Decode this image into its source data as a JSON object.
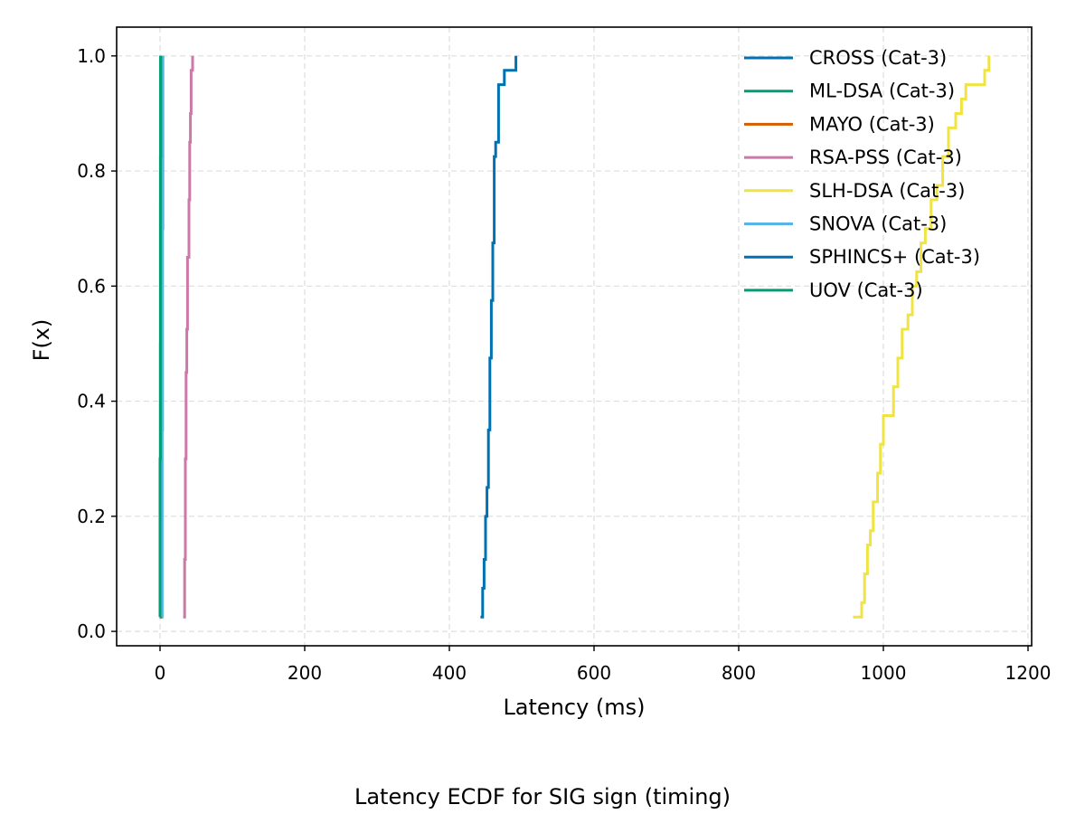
{
  "chart_data": {
    "type": "line",
    "title": "",
    "caption": "Latency ECDF for SIG sign (timing)",
    "xlabel": "Latency (ms)",
    "ylabel": "F(x)",
    "xlim": [
      -60,
      1205
    ],
    "ylim": [
      -0.025,
      1.05
    ],
    "xticks": [
      0,
      200,
      400,
      600,
      800,
      1000,
      1200
    ],
    "yticks": [
      0.0,
      0.2,
      0.4,
      0.6,
      0.8,
      1.0
    ],
    "xtick_labels": [
      "0",
      "200",
      "400",
      "600",
      "800",
      "1000",
      "1200"
    ],
    "ytick_labels": [
      "0.0",
      "0.2",
      "0.4",
      "0.6",
      "0.8",
      "1.0"
    ],
    "grid": true,
    "legend_position": "upper right",
    "series": [
      {
        "name": "CROSS (Cat-3)",
        "color": "#0072B2",
        "x": [
          1.0,
          1.2,
          1.4,
          1.6,
          1.8,
          2.0
        ],
        "y": [
          0.025,
          0.2,
          0.4,
          0.6,
          0.8,
          1.0
        ]
      },
      {
        "name": "ML-DSA (Cat-3)",
        "color": "#009E73",
        "x": [
          0.3,
          0.4,
          0.5,
          0.6,
          0.7
        ],
        "y": [
          0.025,
          0.25,
          0.5,
          0.75,
          1.0
        ]
      },
      {
        "name": "MAYO (Cat-3)",
        "color": "#D55E00",
        "x": [
          1.5,
          1.7,
          1.9,
          2.1,
          2.3
        ],
        "y": [
          0.025,
          0.25,
          0.5,
          0.75,
          1.0
        ]
      },
      {
        "name": "RSA-PSS (Cat-3)",
        "color": "#CC79A7",
        "x": [
          32,
          34,
          35,
          36,
          37,
          38,
          40,
          41,
          42,
          43,
          45
        ],
        "y": [
          0.025,
          0.125,
          0.3,
          0.45,
          0.525,
          0.65,
          0.75,
          0.85,
          0.9,
          0.975,
          1.0
        ]
      },
      {
        "name": "SLH-DSA (Cat-3)",
        "color": "#F0E442",
        "x": [
          958,
          970,
          974,
          978,
          982,
          986,
          992,
          996,
          1000,
          1014,
          1020,
          1026,
          1034,
          1040,
          1046,
          1052,
          1058,
          1066,
          1074,
          1082,
          1090,
          1100,
          1108,
          1114,
          1120,
          1130,
          1140,
          1146
        ],
        "y": [
          0.025,
          0.05,
          0.1,
          0.15,
          0.175,
          0.225,
          0.275,
          0.325,
          0.375,
          0.425,
          0.475,
          0.525,
          0.55,
          0.6,
          0.625,
          0.675,
          0.7,
          0.75,
          0.775,
          0.825,
          0.875,
          0.9,
          0.925,
          0.95,
          0.95,
          0.95,
          0.975,
          1.0
        ]
      },
      {
        "name": "SNOVA (Cat-3)",
        "color": "#56B4E9",
        "x": [
          2.5,
          3.0,
          3.5,
          4.0
        ],
        "y": [
          0.025,
          0.35,
          0.7,
          1.0
        ]
      },
      {
        "name": "SPHINCS+ (Cat-3)",
        "color": "#0072B2",
        "x": [
          443,
          446,
          448,
          450,
          452,
          454,
          456,
          458,
          460,
          462,
          464,
          468,
          476,
          492
        ],
        "y": [
          0.025,
          0.075,
          0.125,
          0.2,
          0.25,
          0.35,
          0.475,
          0.575,
          0.675,
          0.825,
          0.85,
          0.95,
          0.975,
          1.0
        ]
      },
      {
        "name": "UOV (Cat-3)",
        "color": "#009E73",
        "x": [
          -0.5,
          0.0,
          0.5,
          1.0
        ],
        "y": [
          0.025,
          0.3,
          0.825,
          1.0
        ]
      }
    ]
  }
}
